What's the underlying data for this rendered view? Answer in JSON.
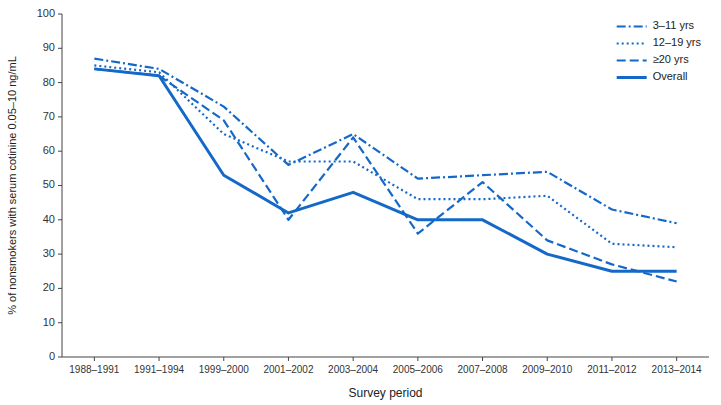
{
  "chart_data": {
    "type": "line",
    "x_label": "Survey period",
    "y_label": "% of nonsmokers with serum cotinine 0.05–10 ng/mL",
    "categories": [
      "1988–1991",
      "1991–1994",
      "1999–2000",
      "2001–2002",
      "2003–2004",
      "2005–2006",
      "2007–2008",
      "2009–2010",
      "2011–2012",
      "2013–2014"
    ],
    "series": [
      {
        "name": "3–11 yrs",
        "line_style": "dashdot",
        "values": [
          87,
          84,
          73,
          56,
          65,
          52,
          53,
          54,
          43,
          39
        ]
      },
      {
        "name": "12–19 yrs",
        "line_style": "dotted",
        "values": [
          85,
          83,
          65,
          57,
          57,
          46,
          46,
          47,
          33,
          32
        ]
      },
      {
        "name": "≥20 yrs",
        "line_style": "dashed",
        "values": [
          84,
          82,
          69,
          40,
          64,
          36,
          51,
          34,
          27,
          22
        ]
      },
      {
        "name": "Overall",
        "line_style": "solid",
        "values": [
          84,
          82,
          53,
          42,
          48,
          40,
          40,
          30,
          25,
          25
        ]
      }
    ],
    "color": "#1469c8",
    "ylim": [
      0,
      100
    ],
    "yticks": [
      0,
      10,
      20,
      30,
      40,
      50,
      60,
      70,
      80,
      90,
      100
    ],
    "grid": false,
    "legend": "upper right"
  }
}
